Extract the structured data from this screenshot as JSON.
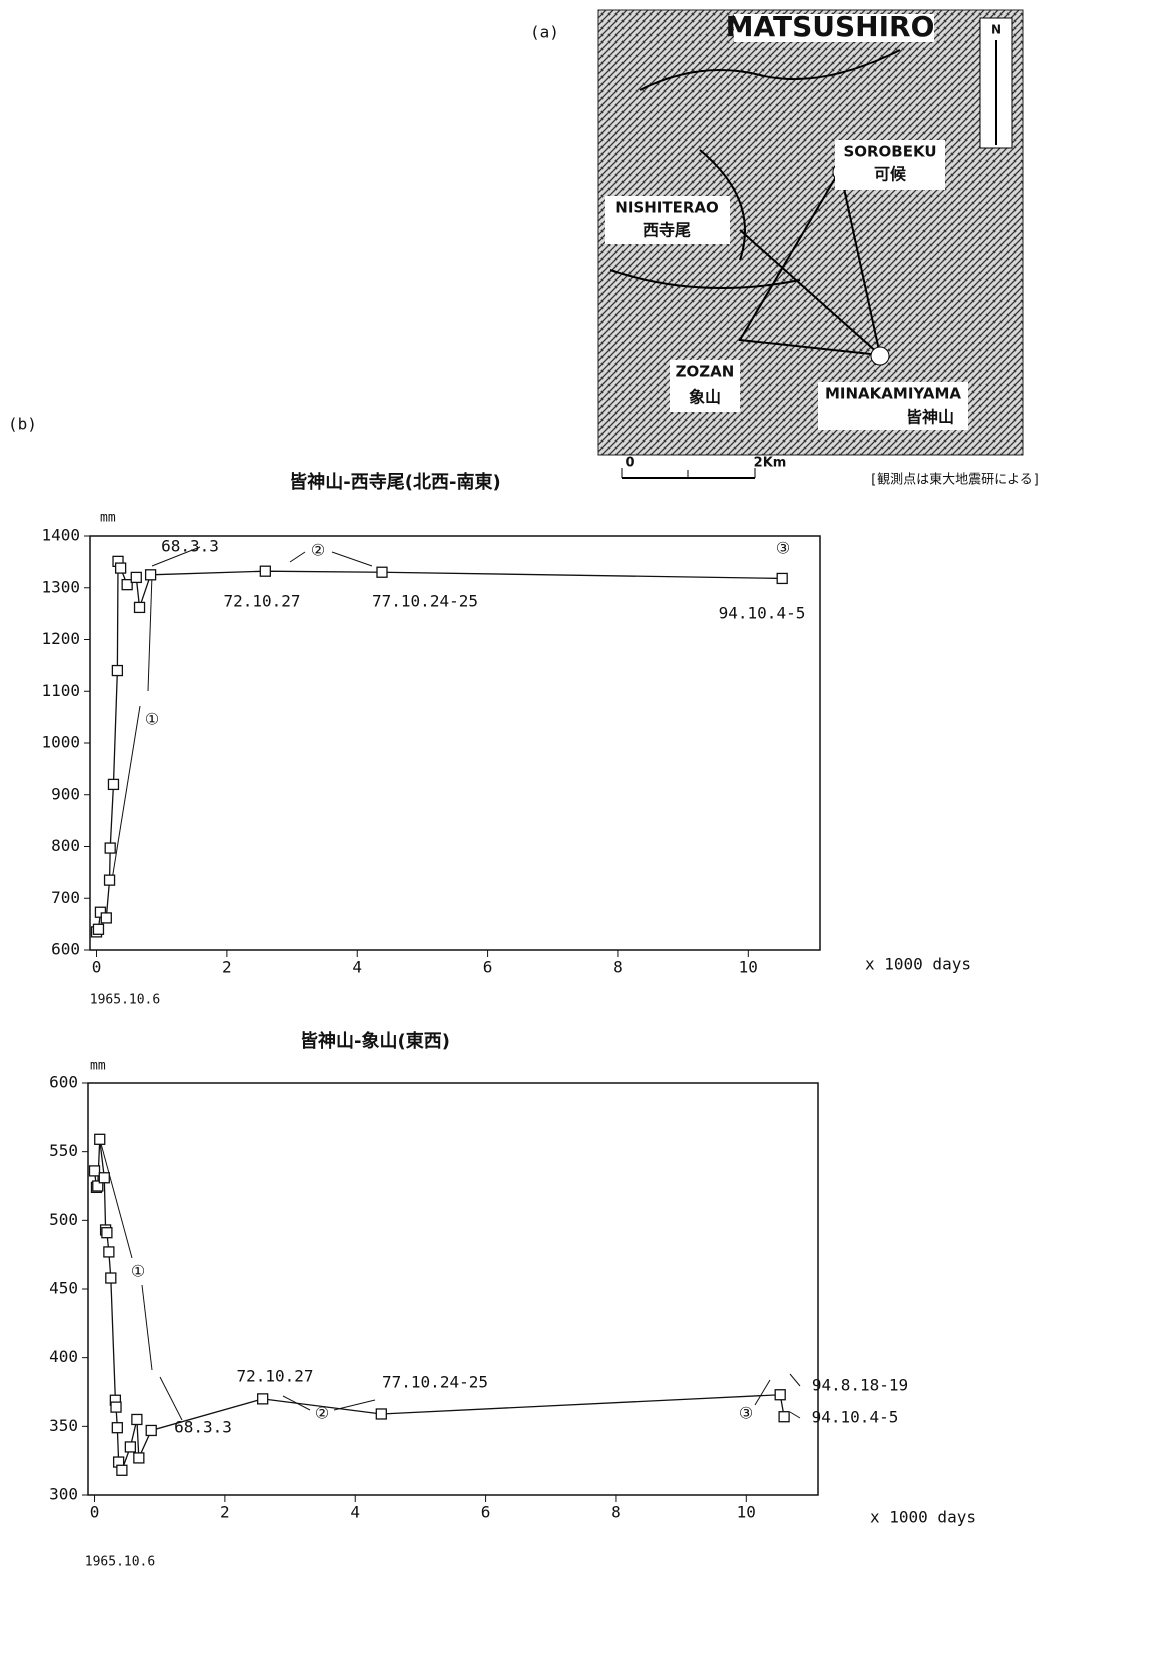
{
  "panel_labels": [
    "(a)",
    "(b)"
  ],
  "map": {
    "labels": [
      "MATSUSHIRO",
      "N",
      "SOROBEKU",
      "可候",
      "NISHITERAO",
      "西寺尾",
      "ZOZAN",
      "象山",
      "MINAKAMIYAMA",
      "皆神山",
      "0",
      "2Km"
    ],
    "credit": "[観測点は東大地震研による]"
  },
  "chart_data": [
    {
      "type": "line",
      "title": "皆神山-西寺尾(北西-南東)",
      "y_unit": "mm",
      "x_label": "x 1000 days",
      "origin_label": "1965.10.6",
      "x": [
        0,
        0.03,
        0.06,
        0.15,
        0.2,
        0.21,
        0.26,
        0.32,
        0.33,
        0.37,
        0.47,
        0.61,
        0.66,
        0.83,
        2.59,
        4.38,
        10.52
      ],
      "series": [
        {
          "name": null,
          "color": "#111111",
          "values": [
            635,
            640,
            673,
            662,
            735,
            797,
            920,
            1140,
            1351,
            1338,
            1306,
            1320,
            1262,
            1325,
            1332,
            1330,
            1318
          ]
        }
      ],
      "xlim": [
        -0.1,
        11.1
      ],
      "ylim": [
        600,
        1400
      ],
      "xticks": [
        0,
        2,
        4,
        6,
        8,
        10
      ],
      "yticks": [
        600,
        700,
        800,
        900,
        1000,
        1100,
        1200,
        1300,
        1400
      ],
      "annotations": [
        "68.3.3",
        "②",
        "72.10.27",
        "77.10.24-25",
        "③",
        "94.10.4-5",
        "①"
      ]
    },
    {
      "type": "line",
      "title": "皆神山-象山(東西)",
      "y_unit": "mm",
      "x_label": "x 1000 days",
      "origin_label": "1965.10.6",
      "x": [
        0,
        0.03,
        0.05,
        0.08,
        0.15,
        0.17,
        0.19,
        0.22,
        0.25,
        0.32,
        0.33,
        0.35,
        0.37,
        0.42,
        0.55,
        0.65,
        0.68,
        0.87,
        2.58,
        4.4,
        10.52,
        10.58
      ],
      "series": [
        {
          "name": null,
          "color": "#111111",
          "values": [
            536,
            524,
            525,
            559,
            531,
            493,
            491,
            477,
            458,
            369,
            364,
            349,
            324,
            318,
            335,
            355,
            327,
            347,
            370,
            359,
            373,
            357
          ]
        }
      ],
      "xlim": [
        -0.1,
        11.1
      ],
      "ylim": [
        300,
        600
      ],
      "xticks": [
        0,
        2,
        4,
        6,
        8,
        10
      ],
      "yticks": [
        300,
        350,
        400,
        450,
        500,
        550,
        600
      ],
      "annotations": [
        "①",
        "72.10.27",
        "77.10.24-25",
        "68.3.3",
        "②",
        "③",
        "94.8.18-19",
        "94.10.4-5"
      ]
    }
  ]
}
